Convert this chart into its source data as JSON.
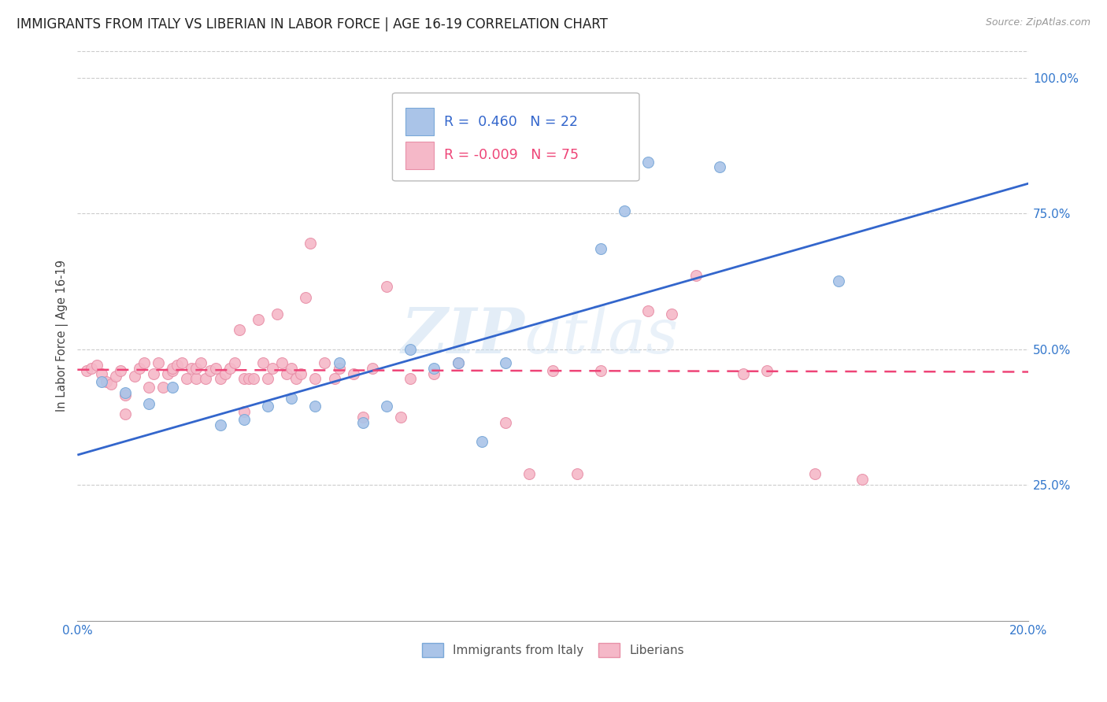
{
  "title": "IMMIGRANTS FROM ITALY VS LIBERIAN IN LABOR FORCE | AGE 16-19 CORRELATION CHART",
  "source": "Source: ZipAtlas.com",
  "ylabel": "In Labor Force | Age 16-19",
  "x_min": 0.0,
  "x_max": 0.2,
  "y_min": 0.0,
  "y_max": 1.05,
  "x_ticks": [
    0.0,
    0.025,
    0.05,
    0.075,
    0.1,
    0.125,
    0.15,
    0.175,
    0.2
  ],
  "x_tick_labels": [
    "0.0%",
    "",
    "",
    "",
    "",
    "",
    "",
    "",
    "20.0%"
  ],
  "y_ticks": [
    0.25,
    0.5,
    0.75,
    1.0
  ],
  "y_tick_labels": [
    "25.0%",
    "50.0%",
    "75.0%",
    "100.0%"
  ],
  "italy_color": "#aac4e8",
  "italy_edge": "#7aa8d8",
  "liberian_color": "#f5b8c8",
  "liberian_edge": "#e890a8",
  "italy_R": 0.46,
  "italy_N": 22,
  "liberian_R": -0.009,
  "liberian_N": 75,
  "watermark_zip": "ZIP",
  "watermark_atlas": "atlas",
  "legend_italy": "Immigrants from Italy",
  "legend_liberian": "Liberians",
  "italy_scatter_x": [
    0.005,
    0.01,
    0.015,
    0.02,
    0.03,
    0.035,
    0.04,
    0.045,
    0.05,
    0.055,
    0.06,
    0.065,
    0.07,
    0.075,
    0.08,
    0.085,
    0.09,
    0.11,
    0.115,
    0.12,
    0.135,
    0.16
  ],
  "italy_scatter_y": [
    0.44,
    0.42,
    0.4,
    0.43,
    0.36,
    0.37,
    0.395,
    0.41,
    0.395,
    0.475,
    0.365,
    0.395,
    0.5,
    0.465,
    0.475,
    0.33,
    0.475,
    0.685,
    0.755,
    0.845,
    0.835,
    0.625
  ],
  "italy_trendline_x": [
    0.0,
    0.2
  ],
  "italy_trendline_y": [
    0.305,
    0.805
  ],
  "liberian_scatter_x": [
    0.002,
    0.003,
    0.004,
    0.005,
    0.006,
    0.007,
    0.008,
    0.009,
    0.01,
    0.01,
    0.012,
    0.013,
    0.014,
    0.015,
    0.016,
    0.017,
    0.018,
    0.019,
    0.02,
    0.02,
    0.021,
    0.022,
    0.023,
    0.024,
    0.025,
    0.025,
    0.026,
    0.027,
    0.028,
    0.029,
    0.03,
    0.031,
    0.032,
    0.033,
    0.034,
    0.035,
    0.035,
    0.036,
    0.037,
    0.038,
    0.039,
    0.04,
    0.041,
    0.042,
    0.043,
    0.044,
    0.045,
    0.046,
    0.047,
    0.048,
    0.049,
    0.05,
    0.052,
    0.054,
    0.055,
    0.058,
    0.06,
    0.062,
    0.065,
    0.068,
    0.07,
    0.075,
    0.08,
    0.09,
    0.095,
    0.1,
    0.105,
    0.11,
    0.12,
    0.125,
    0.13,
    0.14,
    0.145,
    0.155,
    0.165
  ],
  "liberian_scatter_y": [
    0.46,
    0.465,
    0.47,
    0.455,
    0.44,
    0.435,
    0.45,
    0.46,
    0.38,
    0.415,
    0.45,
    0.465,
    0.475,
    0.43,
    0.455,
    0.475,
    0.43,
    0.455,
    0.46,
    0.465,
    0.47,
    0.475,
    0.445,
    0.465,
    0.445,
    0.465,
    0.475,
    0.445,
    0.46,
    0.465,
    0.445,
    0.455,
    0.465,
    0.475,
    0.535,
    0.385,
    0.445,
    0.445,
    0.445,
    0.555,
    0.475,
    0.445,
    0.465,
    0.565,
    0.475,
    0.455,
    0.465,
    0.445,
    0.455,
    0.595,
    0.695,
    0.445,
    0.475,
    0.445,
    0.465,
    0.455,
    0.375,
    0.465,
    0.615,
    0.375,
    0.445,
    0.455,
    0.475,
    0.365,
    0.27,
    0.46,
    0.27,
    0.46,
    0.57,
    0.565,
    0.635,
    0.455,
    0.46,
    0.27,
    0.26
  ],
  "liberian_trendline_x": [
    0.0,
    0.2
  ],
  "liberian_trendline_y": [
    0.462,
    0.458
  ]
}
